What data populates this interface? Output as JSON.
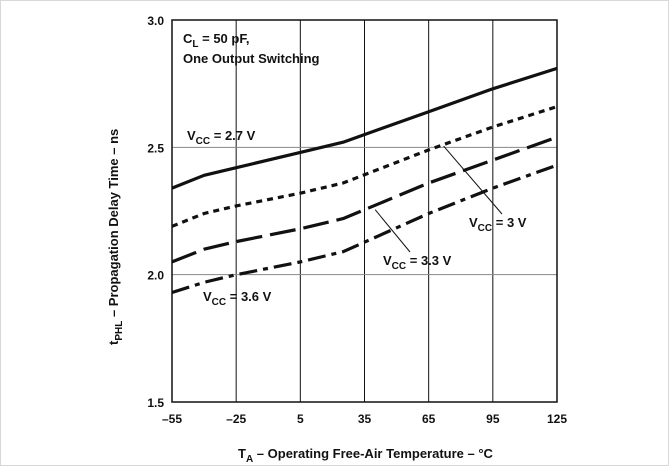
{
  "chart_data": {
    "type": "line",
    "xlabel": {
      "main": "T",
      "sub": "A",
      "rest": " – Operating Free-Air Temperature – °C"
    },
    "ylabel": {
      "main": "t",
      "sub": "PHL",
      "rest": " – Propagation Delay Time – ns"
    },
    "xlim": [
      -55,
      125
    ],
    "ylim": [
      1.5,
      3.0
    ],
    "xticks": [
      -55,
      -25,
      5,
      35,
      65,
      95,
      125
    ],
    "yticks": [
      1.5,
      2.0,
      2.5,
      3.0
    ],
    "ytick_labels": [
      "1.5",
      "2.0",
      "2.5",
      "3.0"
    ],
    "grid": true,
    "condition": {
      "line1_main": "C",
      "line1_sub": "L",
      "line1_rest": " = 50 pF,",
      "line2": "One Output Switching"
    },
    "series": [
      {
        "name": "VCC = 2.7 V",
        "label": {
          "main": "V",
          "sub": "CC",
          "rest": " = 2.7 V"
        },
        "style": "solid",
        "x": [
          -55,
          -40,
          -25,
          5,
          25,
          65,
          95,
          125
        ],
        "y": [
          2.34,
          2.39,
          2.42,
          2.48,
          2.52,
          2.64,
          2.73,
          2.81
        ]
      },
      {
        "name": "VCC = 3 V",
        "label": {
          "main": "V",
          "sub": "CC",
          "rest": " = 3 V"
        },
        "style": "dotted",
        "x": [
          -55,
          -40,
          -25,
          5,
          25,
          65,
          95,
          125
        ],
        "y": [
          2.19,
          2.24,
          2.27,
          2.32,
          2.36,
          2.49,
          2.58,
          2.66
        ]
      },
      {
        "name": "VCC = 3.3 V",
        "label": {
          "main": "V",
          "sub": "CC",
          "rest": " = 3.3 V"
        },
        "style": "long-dash",
        "x": [
          -55,
          -40,
          -25,
          5,
          25,
          65,
          95,
          125
        ],
        "y": [
          2.05,
          2.1,
          2.13,
          2.18,
          2.22,
          2.36,
          2.45,
          2.54
        ]
      },
      {
        "name": "VCC = 3.6 V",
        "label": {
          "main": "V",
          "sub": "CC",
          "rest": " = 3.6 V"
        },
        "style": "dash-dot",
        "x": [
          -55,
          -40,
          -25,
          5,
          25,
          65,
          95,
          125
        ],
        "y": [
          1.93,
          1.97,
          2.0,
          2.05,
          2.09,
          2.24,
          2.34,
          2.43
        ]
      }
    ]
  }
}
